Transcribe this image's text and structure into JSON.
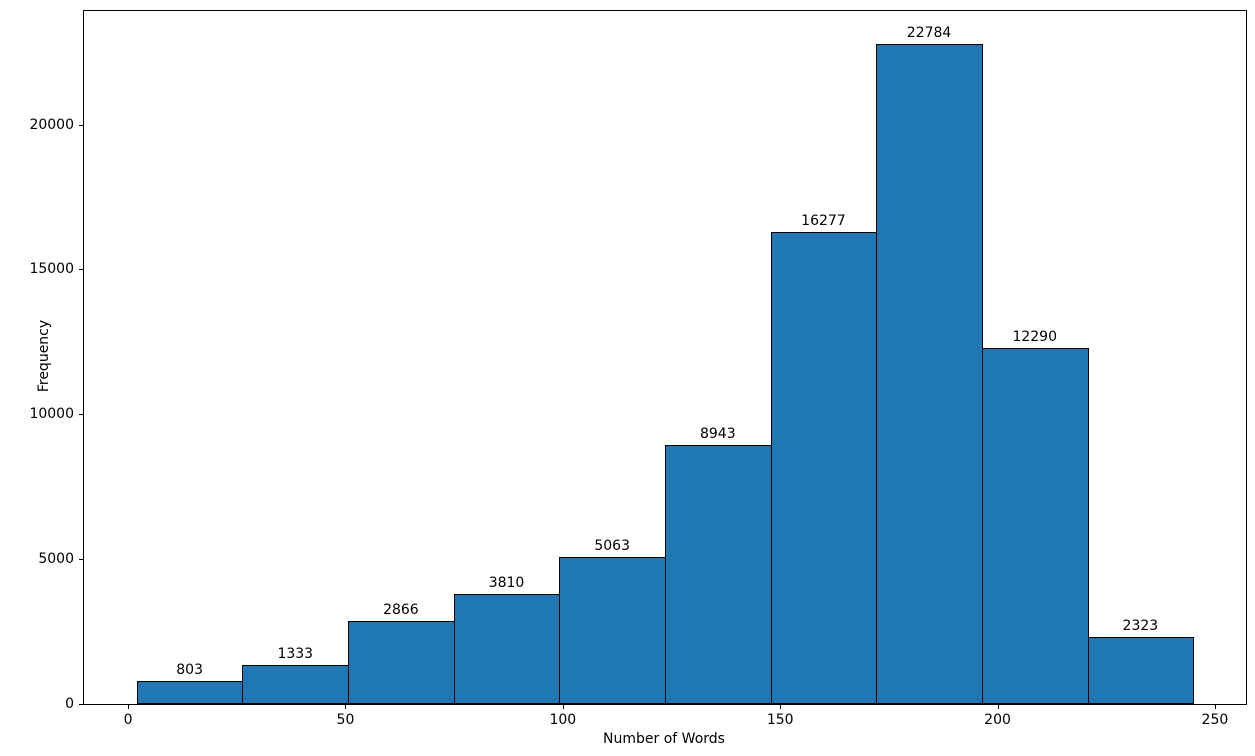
{
  "chart_data": {
    "type": "bar",
    "subtype": "histogram",
    "title": "",
    "xlabel": "Number of Words",
    "ylabel": "Frequency",
    "bin_start": 2,
    "bin_end": 245,
    "bin_count": 10,
    "values": [
      803,
      1333,
      2866,
      3810,
      5063,
      8943,
      16277,
      22784,
      12290,
      2323
    ],
    "bar_value_labels": [
      "803",
      "1333",
      "2866",
      "3810",
      "5063",
      "8943",
      "16277",
      "22784",
      "12290",
      "2323"
    ],
    "xticks": [
      0,
      50,
      100,
      150,
      200,
      250
    ],
    "yticks": [
      0,
      5000,
      10000,
      15000,
      20000
    ],
    "xlim": [
      -10.15,
      257.15
    ],
    "ylim": [
      0,
      23923
    ],
    "bar_color": "#1f77b4",
    "edge_color": "#000000",
    "grid": false,
    "legend": null
  }
}
